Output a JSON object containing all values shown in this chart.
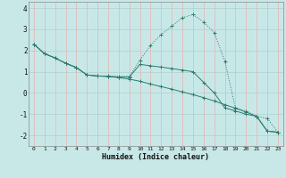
{
  "xlabel": "Humidex (Indice chaleur)",
  "xlim": [
    -0.5,
    23.5
  ],
  "ylim": [
    -2.5,
    4.3
  ],
  "yticks": [
    -2,
    -1,
    0,
    1,
    2,
    3,
    4
  ],
  "xticks": [
    0,
    1,
    2,
    3,
    4,
    5,
    6,
    7,
    8,
    9,
    10,
    11,
    12,
    13,
    14,
    15,
    16,
    17,
    18,
    19,
    20,
    21,
    22,
    23
  ],
  "bg_color": "#c8e8e8",
  "grid_color_h": "#b0d0d0",
  "grid_color_v": "#e8b0b0",
  "line_color": "#2d7a6e",
  "series1_x": [
    0,
    1,
    2,
    3,
    4,
    5,
    6,
    7,
    8,
    9,
    10,
    11,
    12,
    13,
    14,
    15,
    16,
    17,
    18,
    19,
    20,
    21,
    22,
    23
  ],
  "series1_y": [
    2.3,
    1.85,
    1.65,
    1.4,
    1.2,
    0.85,
    0.8,
    0.8,
    0.78,
    0.78,
    1.55,
    2.25,
    2.75,
    3.15,
    3.55,
    3.7,
    3.35,
    2.85,
    1.5,
    -0.7,
    -0.85,
    -1.1,
    -1.2,
    -1.85
  ],
  "series2_x": [
    0,
    1,
    2,
    3,
    4,
    5,
    6,
    7,
    8,
    9,
    10,
    11,
    12,
    13,
    14,
    15,
    16,
    17,
    18,
    19,
    20,
    21,
    22,
    23
  ],
  "series2_y": [
    2.3,
    1.85,
    1.65,
    1.4,
    1.2,
    0.85,
    0.8,
    0.78,
    0.75,
    0.75,
    1.35,
    1.28,
    1.22,
    1.15,
    1.08,
    1.0,
    0.5,
    0.0,
    -0.7,
    -0.85,
    -1.0,
    -1.1,
    -1.8,
    -1.85
  ],
  "series3_x": [
    0,
    1,
    2,
    3,
    4,
    5,
    6,
    7,
    8,
    9,
    10,
    11,
    12,
    13,
    14,
    15,
    16,
    17,
    18,
    19,
    20,
    21,
    22,
    23
  ],
  "series3_y": [
    2.3,
    1.85,
    1.65,
    1.4,
    1.2,
    0.85,
    0.8,
    0.78,
    0.72,
    0.65,
    0.55,
    0.42,
    0.3,
    0.18,
    0.05,
    -0.08,
    -0.22,
    -0.38,
    -0.55,
    -0.72,
    -0.9,
    -1.1,
    -1.8,
    -1.85
  ]
}
